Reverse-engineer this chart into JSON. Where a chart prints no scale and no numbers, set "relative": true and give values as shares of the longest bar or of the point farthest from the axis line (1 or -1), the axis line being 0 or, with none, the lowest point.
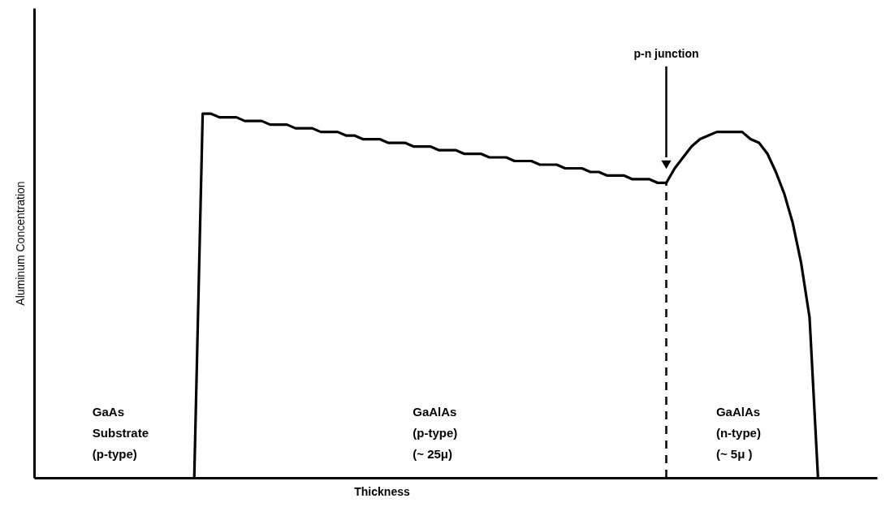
{
  "chart_data": {
    "type": "line",
    "relative": true,
    "xlabel": "Thickness",
    "ylabel": "Aluminum Concentration",
    "line_style": "solid",
    "categories": [
      null,
      null,
      null,
      null,
      null,
      null,
      null,
      null,
      null,
      null,
      null,
      null,
      null,
      null,
      null,
      null,
      null,
      null,
      null,
      null,
      null,
      null,
      null,
      null,
      null,
      null,
      null,
      null,
      null,
      null,
      null,
      null,
      null,
      null,
      null,
      null,
      null,
      null,
      null,
      null,
      null,
      null,
      null,
      null,
      null,
      null,
      null,
      null,
      null,
      null,
      null,
      null,
      null,
      null,
      null,
      null,
      null,
      null,
      null,
      null,
      null,
      null,
      null,
      null,
      null,
      null,
      null,
      null,
      null,
      null,
      null,
      null,
      null,
      null,
      null,
      null,
      null,
      null,
      null,
      null,
      null,
      null,
      null,
      null,
      null,
      null,
      null,
      null,
      null,
      null,
      null,
      null,
      null,
      null,
      null,
      null,
      null,
      null,
      null,
      null,
      null
    ],
    "series": [
      {
        "color": "#000000",
        "values": [
          null,
          null,
          null,
          null,
          null,
          null,
          null,
          null,
          null,
          null,
          null,
          null,
          null,
          null,
          null,
          null,
          null,
          null,
          null,
          0,
          1.0,
          1.0,
          0.99,
          0.99,
          0.99,
          0.98,
          0.98,
          0.98,
          0.97,
          0.97,
          0.97,
          0.96,
          0.96,
          0.96,
          0.95,
          0.95,
          0.95,
          0.94,
          0.94,
          0.93,
          0.93,
          0.93,
          0.92,
          0.92,
          0.92,
          0.91,
          0.91,
          0.91,
          0.9,
          0.9,
          0.9,
          0.89,
          0.89,
          0.89,
          0.88,
          0.88,
          0.88,
          0.87,
          0.87,
          0.87,
          0.86,
          0.86,
          0.86,
          0.85,
          0.85,
          0.85,
          0.84,
          0.84,
          0.83,
          0.83,
          0.83,
          0.82,
          0.82,
          0.82,
          0.81,
          0.81,
          0.85,
          0.88,
          0.91,
          0.93,
          0.94,
          0.95,
          0.95,
          0.95,
          0.95,
          0.93,
          0.92,
          0.89,
          0.84,
          0.78,
          0.7,
          0.59,
          0.44,
          0,
          null,
          null,
          null,
          null,
          null,
          null,
          null
        ]
      }
    ],
    "annotations": [
      "p-n junction",
      "GaAs\nSubstrate\n(p-type)",
      "GaAlAs\n(p-type)\n(~ 25μ)",
      "GaAlAs\n(n-type)\n(~ 5μ )"
    ]
  }
}
